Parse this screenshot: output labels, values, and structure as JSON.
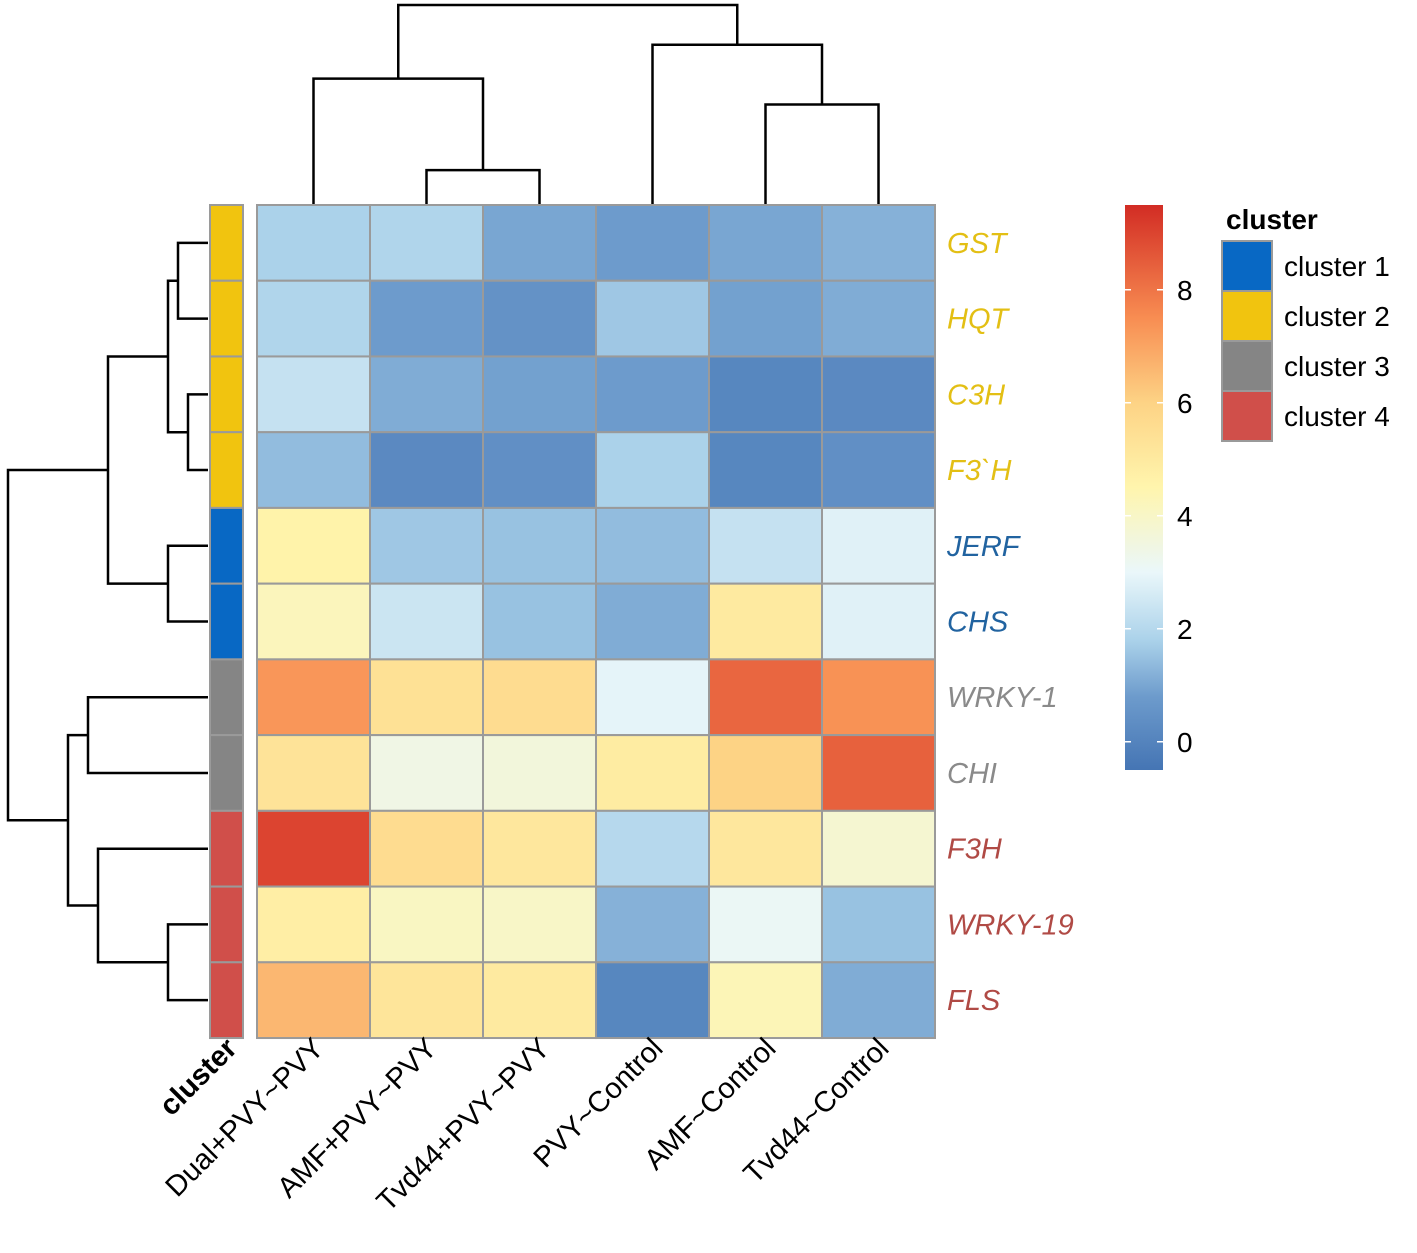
{
  "chart_data": {
    "type": "heatmap",
    "columns": [
      "Dual+PVY~PVY",
      "AMF+PVY~PVY",
      "Tvd44+PVY~PVY",
      "PVY~Control",
      "AMF~Control",
      "Tvd44~Control"
    ],
    "rows": [
      {
        "name": "GST",
        "cluster": "cluster 2",
        "values": [
          1.8,
          1.9,
          1.0,
          0.8,
          1.0,
          1.2
        ]
      },
      {
        "name": "HQT",
        "cluster": "cluster 2",
        "values": [
          1.9,
          0.8,
          0.5,
          1.6,
          0.9,
          1.1
        ]
      },
      {
        "name": "C3H",
        "cluster": "cluster 2",
        "values": [
          2.3,
          1.1,
          0.9,
          0.8,
          0.1,
          0.2
        ]
      },
      {
        "name": "F3`H",
        "cluster": "cluster 2",
        "values": [
          1.4,
          0.2,
          0.4,
          1.8,
          0.1,
          0.4
        ]
      },
      {
        "name": "JERF",
        "cluster": "cluster 1",
        "values": [
          4.6,
          1.6,
          1.5,
          1.4,
          2.3,
          2.8
        ]
      },
      {
        "name": "CHS",
        "cluster": "cluster 1",
        "values": [
          4.2,
          2.4,
          1.5,
          1.1,
          5.0,
          2.8
        ]
      },
      {
        "name": "WRKY-1",
        "cluster": "cluster 3",
        "values": [
          7.3,
          5.4,
          5.6,
          2.9,
          8.3,
          7.4
        ]
      },
      {
        "name": "CHI",
        "cluster": "cluster 3",
        "values": [
          5.3,
          3.4,
          3.6,
          4.9,
          6.0,
          8.4
        ]
      },
      {
        "name": "F3H",
        "cluster": "cluster 4",
        "values": [
          9.0,
          5.6,
          5.1,
          2.0,
          5.1,
          3.8
        ]
      },
      {
        "name": "WRKY-19",
        "cluster": "cluster 4",
        "values": [
          4.8,
          4.1,
          4.0,
          1.2,
          3.1,
          1.5
        ]
      },
      {
        "name": "FLS",
        "cluster": "cluster 4",
        "values": [
          6.6,
          5.2,
          5.0,
          0.1,
          4.3,
          1.1
        ]
      }
    ],
    "colorbar": {
      "min": -0.5,
      "max": 9.5,
      "ticks": [
        0,
        2,
        4,
        6,
        8
      ]
    },
    "color_scale": [
      {
        "v": -0.5,
        "c": "#4575b4"
      },
      {
        "v": 0.8,
        "c": "#6d9bcc"
      },
      {
        "v": 1.8,
        "c": "#abd2ea"
      },
      {
        "v": 3.0,
        "c": "#eaf7fa"
      },
      {
        "v": 4.5,
        "c": "#fff5ad"
      },
      {
        "v": 6.0,
        "c": "#fdd385"
      },
      {
        "v": 7.5,
        "c": "#f88d52"
      },
      {
        "v": 9.5,
        "c": "#d22c24"
      }
    ],
    "legend": {
      "title": "cluster",
      "items": [
        {
          "label": "cluster 1",
          "color": "#0868c4"
        },
        {
          "label": "cluster 2",
          "color": "#f1c40f"
        },
        {
          "label": "cluster 3",
          "color": "#858585"
        },
        {
          "label": "cluster 4",
          "color": "#d04f4a"
        }
      ]
    },
    "row_label_colors": {
      "cluster 1": "#2163a0",
      "cluster 2": "#e3bf14",
      "cluster 3": "#8a8a8a",
      "cluster 4": "#b04a45"
    },
    "annotation_axis_label": "cluster",
    "col_dendrogram": {
      "leaves": 6,
      "merges": [
        [
          1,
          2,
          0.17
        ],
        [
          0,
          -1,
          0.63
        ],
        [
          4,
          5,
          0.5
        ],
        [
          3,
          -3,
          0.8
        ],
        [
          -2,
          -4,
          1.0
        ]
      ]
    },
    "row_dendrogram": {
      "leaves": 11,
      "merges": [
        [
          0,
          1,
          0.03
        ],
        [
          2,
          3,
          0.02
        ],
        [
          -1,
          -2,
          0.04
        ],
        [
          4,
          5,
          0.04
        ],
        [
          -3,
          -4,
          0.1
        ],
        [
          6,
          7,
          0.12
        ],
        [
          9,
          10,
          0.04
        ],
        [
          8,
          -7,
          0.11
        ],
        [
          -6,
          -8,
          0.14
        ],
        [
          -5,
          -9,
          0.2
        ]
      ]
    }
  }
}
